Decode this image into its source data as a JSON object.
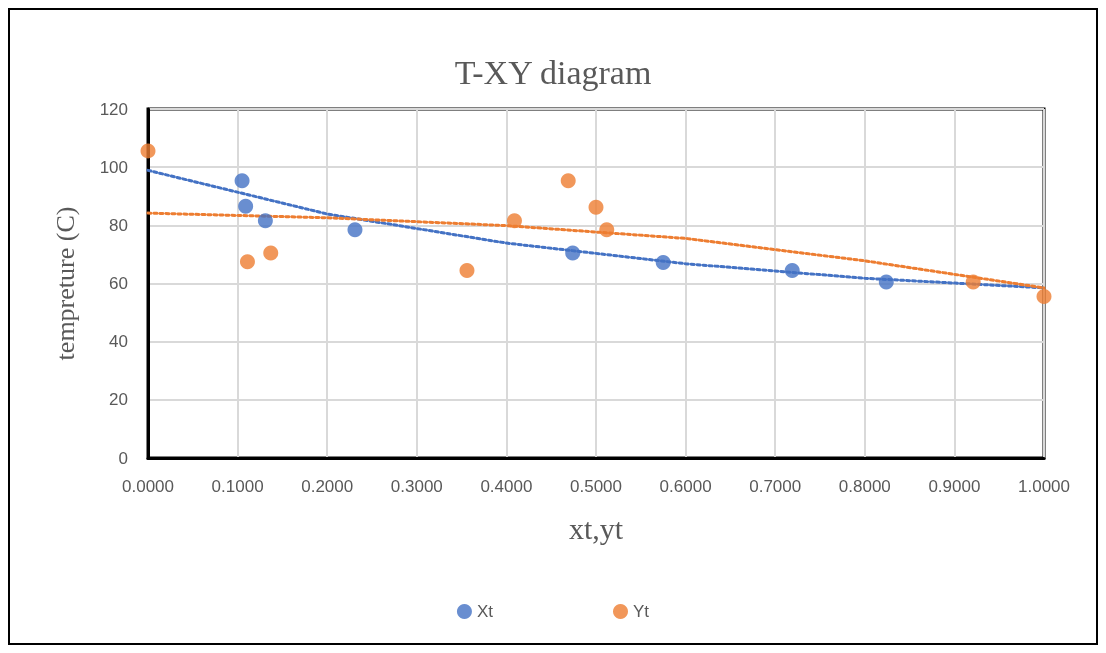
{
  "chart_data": {
    "type": "scatter",
    "title": "T-XY diagram",
    "xlabel": "xt,yt",
    "ylabel": "tempreture (C)",
    "xlim": [
      0,
      1
    ],
    "xticks": [
      {
        "value": 0,
        "label": "0.0000"
      },
      {
        "value": 0.1,
        "label": "0.1000"
      },
      {
        "value": 0.2,
        "label": "0.2000"
      },
      {
        "value": 0.3,
        "label": "0.3000"
      },
      {
        "value": 0.4,
        "label": "0.4000"
      },
      {
        "value": 0.5,
        "label": "0.5000"
      },
      {
        "value": 0.6,
        "label": "0.6000"
      },
      {
        "value": 0.7,
        "label": "0.7000"
      },
      {
        "value": 0.8,
        "label": "0.8000"
      },
      {
        "value": 0.9,
        "label": "0.9000"
      },
      {
        "value": 1,
        "label": "1.0000"
      }
    ],
    "ylim": [
      0,
      120
    ],
    "yticks": [
      0,
      20,
      40,
      60,
      80,
      100,
      120
    ],
    "grid": true,
    "legend": "bottom",
    "marker": "circle",
    "series": [
      {
        "name": "Xt",
        "color": "#4472c4",
        "x": [
          0.105,
          0.109,
          0.131,
          0.231,
          0.474,
          0.575,
          0.719,
          0.824
        ],
        "values": [
          95.3,
          86.6,
          81.6,
          78.5,
          70.5,
          67.2,
          64.5,
          60.5
        ]
      },
      {
        "name": "Yt",
        "color": "#ed7d31",
        "x": [
          0,
          0.111,
          0.137,
          0.356,
          0.409,
          0.469,
          0.5,
          0.512,
          0.921,
          1
        ],
        "values": [
          105.6,
          67.5,
          70.5,
          64.5,
          81.6,
          95.3,
          86.2,
          78.5,
          60.5,
          55.5
        ]
      },
      {
        "type": "line",
        "color": "#4472c4",
        "marker": "none",
        "line_style": "dotted",
        "x": [
          0,
          0.2,
          0.4,
          0.6,
          0.8,
          1
        ],
        "values": [
          98.9,
          83.9,
          73.9,
          66.8,
          61.8,
          58.5
        ]
      },
      {
        "type": "line",
        "color": "#ed7d31",
        "marker": "none",
        "line_style": "dotted",
        "x": [
          0,
          0.2,
          0.4,
          0.6,
          0.8,
          1
        ],
        "values": [
          84.2,
          82.6,
          79.9,
          75.5,
          67.8,
          58.5
        ]
      }
    ]
  }
}
